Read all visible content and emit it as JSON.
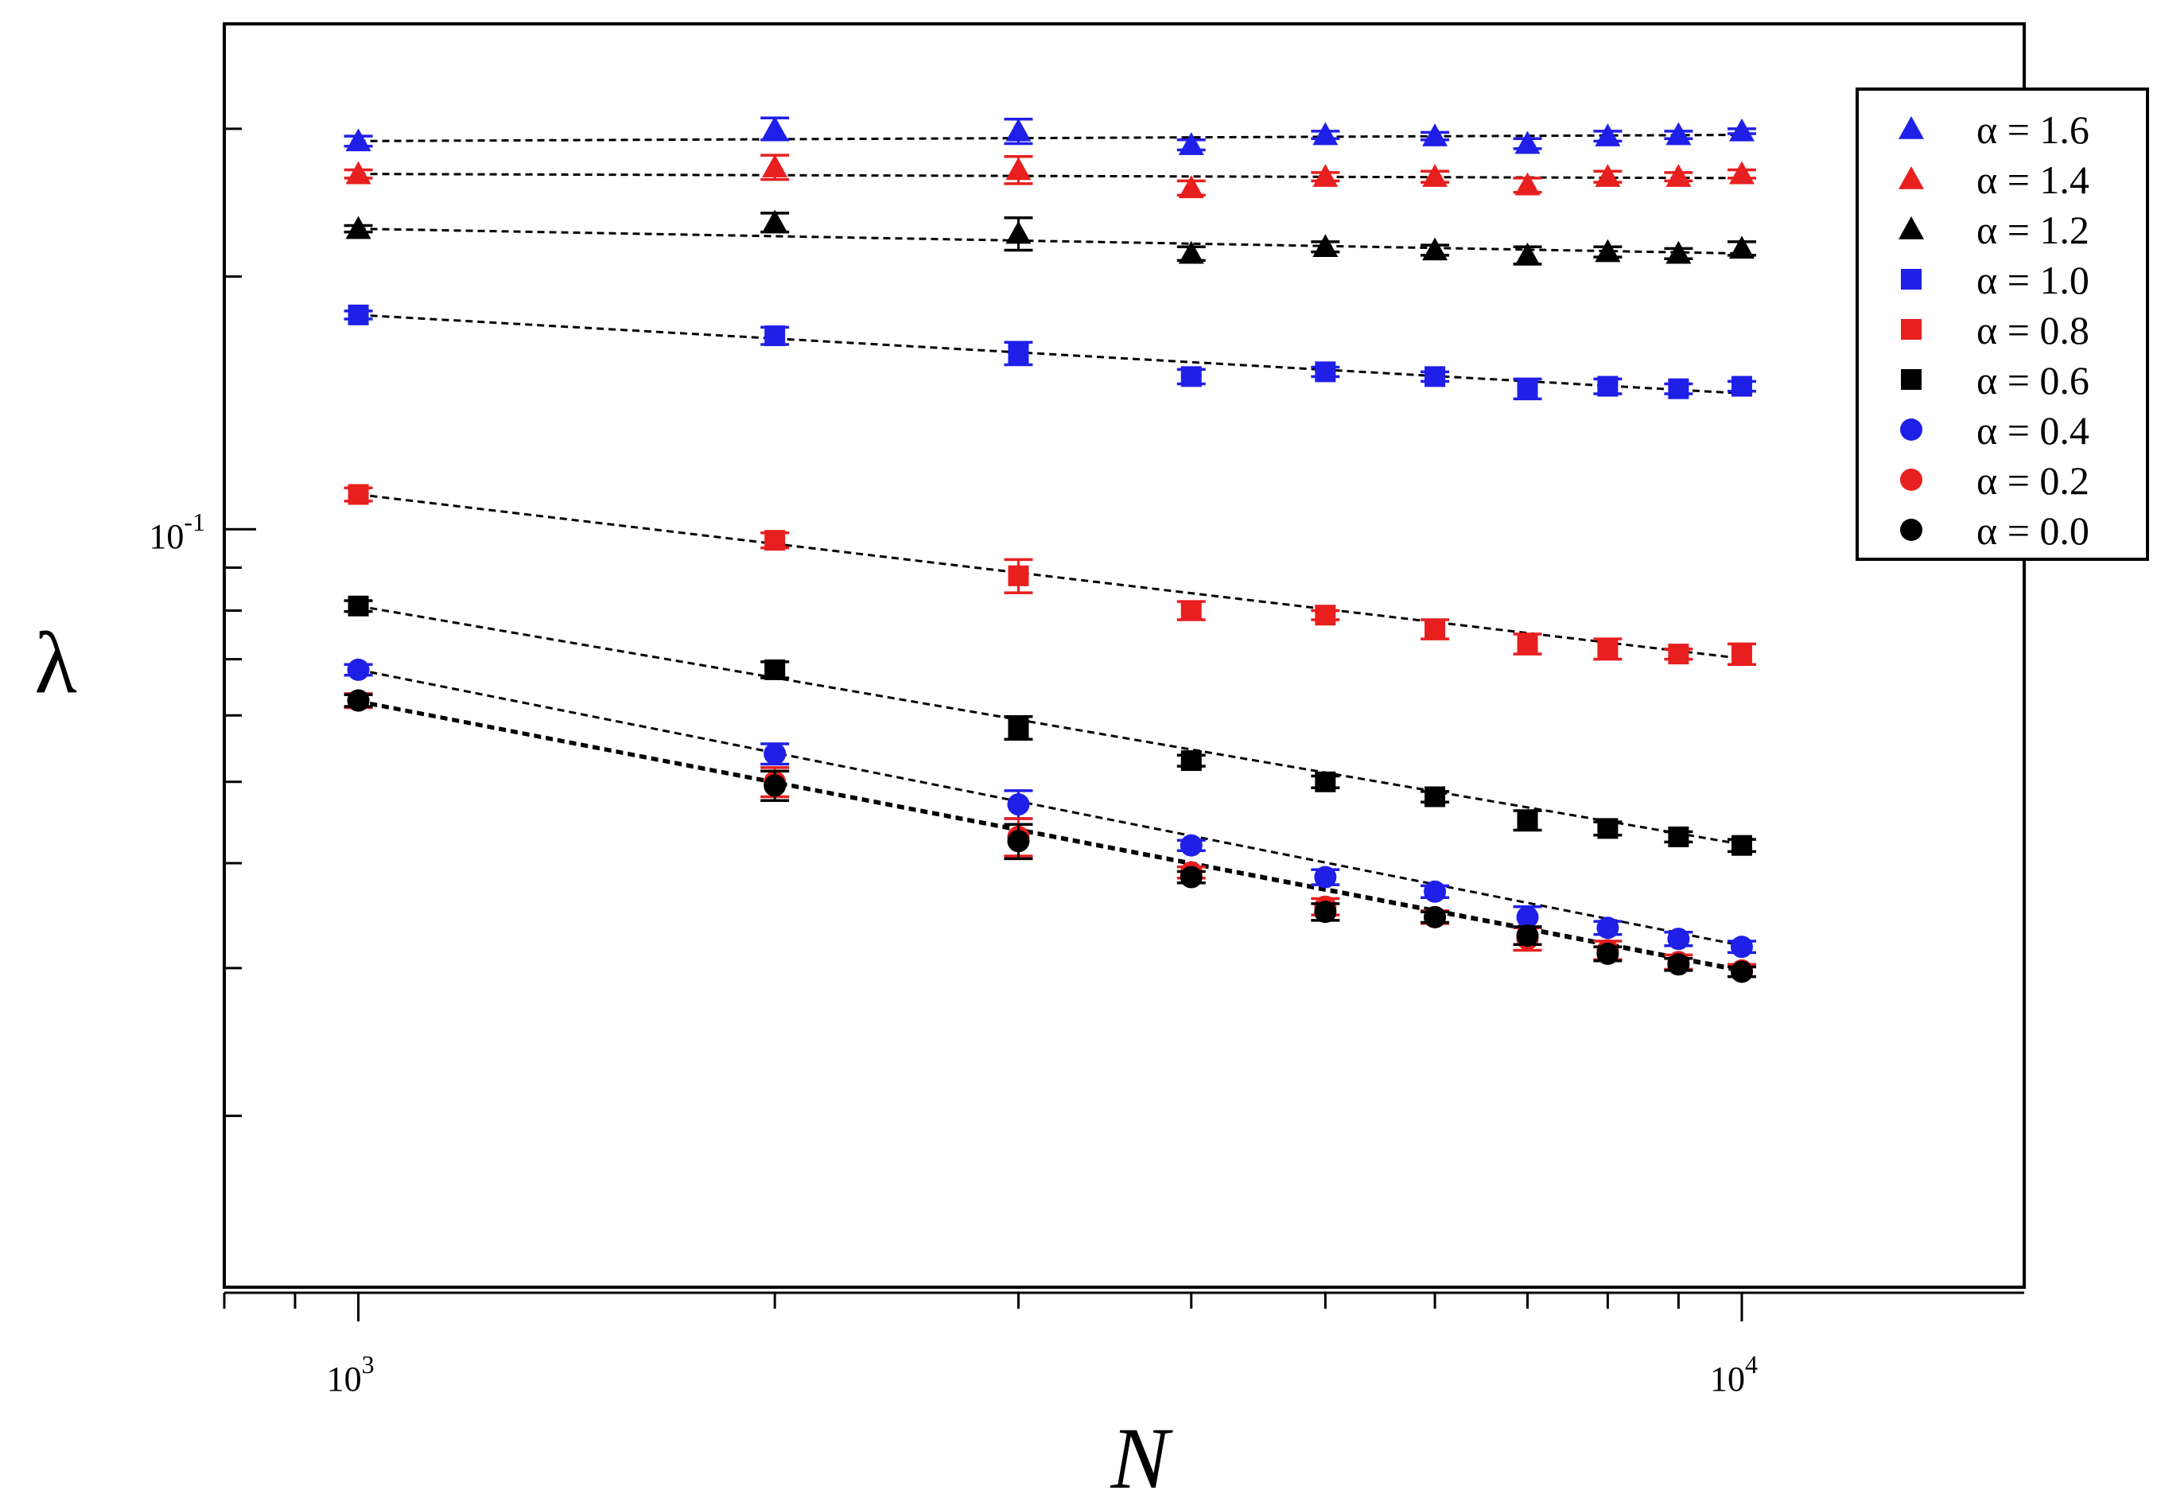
{
  "chart_data": {
    "type": "scatter",
    "title": "",
    "xlabel": "N",
    "ylabel": "λ",
    "xscale": "log",
    "yscale": "log",
    "xlim": [
      800,
      16000
    ],
    "ylim": [
      0.0125,
      0.4
    ],
    "x_ticks": [
      1000,
      10000
    ],
    "x_tick_labels": [
      {
        "base": "10",
        "exp": "3"
      },
      {
        "base": "10",
        "exp": "4"
      }
    ],
    "y_ticks": [
      0.1
    ],
    "y_tick_labels": [
      {
        "base": "10",
        "exp": "-1"
      }
    ],
    "legend_position": "top-right",
    "fit_lines": "dashed",
    "x": [
      1000,
      2000,
      3000,
      4000,
      5000,
      6000,
      7000,
      8000,
      9000,
      10000
    ],
    "series": [
      {
        "name": "α = 1.6",
        "label": "α = 1.6",
        "color": "#1f1fe8",
        "marker": "triangle",
        "values": [
          0.29,
          0.3,
          0.298,
          0.287,
          0.295,
          0.294,
          0.288,
          0.294,
          0.295,
          0.298
        ],
        "errors": [
          0.004,
          0.009,
          0.01,
          0.004,
          0.003,
          0.003,
          0.004,
          0.004,
          0.003,
          0.002
        ],
        "fit": [
          0.29,
          0.295
        ]
      },
      {
        "name": "α = 1.4",
        "label": "α = 1.4",
        "color": "#e81f1f",
        "marker": "triangle",
        "values": [
          0.265,
          0.27,
          0.268,
          0.255,
          0.263,
          0.263,
          0.257,
          0.263,
          0.263,
          0.265
        ],
        "errors": [
          0.003,
          0.009,
          0.01,
          0.005,
          0.003,
          0.004,
          0.005,
          0.004,
          0.003,
          0.003
        ],
        "fit": [
          0.265,
          0.262
        ]
      },
      {
        "name": "α = 1.2",
        "label": "α = 1.2",
        "color": "#000000",
        "marker": "triangle",
        "values": [
          0.228,
          0.232,
          0.225,
          0.213,
          0.217,
          0.215,
          0.212,
          0.214,
          0.213,
          0.216
        ],
        "errors": [
          0.002,
          0.006,
          0.01,
          0.004,
          0.003,
          0.003,
          0.005,
          0.003,
          0.003,
          0.004
        ],
        "fit": [
          0.228,
          0.213
        ]
      },
      {
        "name": "α = 1.0",
        "label": "α = 1.0",
        "color": "#1f1fe8",
        "marker": "square",
        "values": [
          0.18,
          0.17,
          0.162,
          0.152,
          0.154,
          0.152,
          0.147,
          0.148,
          0.147,
          0.148
        ],
        "errors": [
          0.002,
          0.004,
          0.005,
          0.003,
          0.002,
          0.002,
          0.004,
          0.003,
          0.002,
          0.002
        ],
        "fit": [
          0.18,
          0.145
        ]
      },
      {
        "name": "α = 0.8",
        "label": "α = 0.8",
        "color": "#e81f1f",
        "marker": "square",
        "values": [
          0.11,
          0.097,
          0.088,
          0.08,
          0.079,
          0.076,
          0.073,
          0.072,
          0.071,
          0.071
        ],
        "errors": [
          0.002,
          0.002,
          0.004,
          0.002,
          0.001,
          0.002,
          0.002,
          0.002,
          0.001,
          0.002
        ],
        "fit": [
          0.11,
          0.07
        ]
      },
      {
        "name": "α = 0.6",
        "label": "α = 0.6",
        "color": "#000000",
        "marker": "square",
        "values": [
          0.081,
          0.068,
          0.058,
          0.053,
          0.05,
          0.048,
          0.045,
          0.044,
          0.043,
          0.042
        ],
        "errors": [
          0.0012,
          0.0015,
          0.0018,
          0.0008,
          0.0008,
          0.0007,
          0.0012,
          0.0008,
          0.0006,
          0.0007
        ],
        "fit": [
          0.081,
          0.042
        ]
      },
      {
        "name": "α = 0.4",
        "label": "α = 0.4",
        "color": "#1f1fe8",
        "marker": "circle",
        "values": [
          0.068,
          0.054,
          0.047,
          0.042,
          0.0385,
          0.037,
          0.0345,
          0.0335,
          0.0325,
          0.0318
        ],
        "errors": [
          0.001,
          0.0015,
          0.0018,
          0.0006,
          0.0008,
          0.0006,
          0.001,
          0.0006,
          0.0006,
          0.0005
        ],
        "fit": [
          0.068,
          0.0318
        ]
      },
      {
        "name": "α = 0.2",
        "label": "α = 0.2",
        "color": "#e81f1f",
        "marker": "circle",
        "values": [
          0.0625,
          0.05,
          0.043,
          0.039,
          0.0355,
          0.0345,
          0.0325,
          0.0315,
          0.0305,
          0.0298
        ],
        "errors": [
          0.0012,
          0.002,
          0.0022,
          0.0006,
          0.0008,
          0.0006,
          0.001,
          0.0008,
          0.0006,
          0.0005
        ],
        "fit": [
          0.0625,
          0.0298
        ]
      },
      {
        "name": "α = 0.0",
        "label": "α = 0.0",
        "color": "#000000",
        "marker": "circle",
        "values": [
          0.0625,
          0.0495,
          0.0425,
          0.0385,
          0.035,
          0.0345,
          0.0328,
          0.0312,
          0.0303,
          0.0297
        ],
        "errors": [
          0.001,
          0.002,
          0.002,
          0.0006,
          0.0008,
          0.0005,
          0.0008,
          0.0006,
          0.0005,
          0.0004
        ],
        "fit": [
          0.0622,
          0.0296
        ]
      }
    ]
  }
}
